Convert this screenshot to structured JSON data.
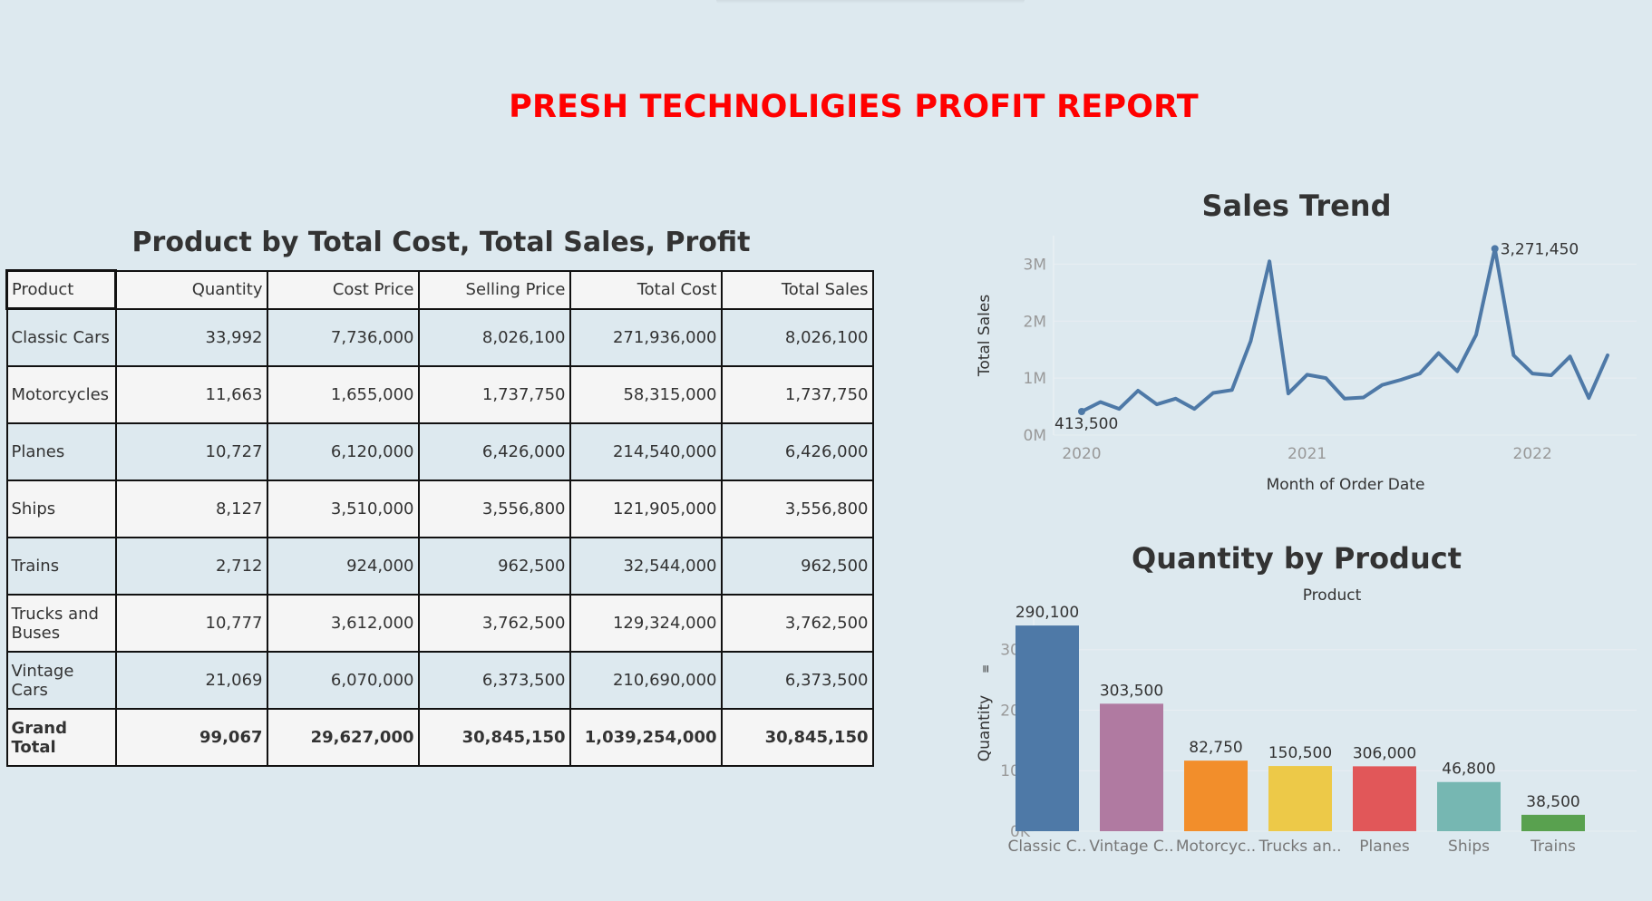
{
  "report_title": "PRESH TECHNOLIGIES PROFIT REPORT",
  "table": {
    "title": "Product by Total Cost, Total Sales, Profit",
    "headers": [
      "Product",
      "Quantity",
      "Cost Price",
      "Selling Price",
      "Total Cost",
      "Total Sales"
    ],
    "rows": [
      [
        "Classic Cars",
        "33,992",
        "7,736,000",
        "8,026,100",
        "271,936,000",
        "8,026,100"
      ],
      [
        "Motorcycles",
        "11,663",
        "1,655,000",
        "1,737,750",
        "58,315,000",
        "1,737,750"
      ],
      [
        "Planes",
        "10,727",
        "6,120,000",
        "6,426,000",
        "214,540,000",
        "6,426,000"
      ],
      [
        "Ships",
        "8,127",
        "3,510,000",
        "3,556,800",
        "121,905,000",
        "3,556,800"
      ],
      [
        "Trains",
        "2,712",
        "924,000",
        "962,500",
        "32,544,000",
        "962,500"
      ],
      [
        "Trucks and Buses",
        "10,777",
        "3,612,000",
        "3,762,500",
        "129,324,000",
        "3,762,500"
      ],
      [
        "Vintage Cars",
        "21,069",
        "6,070,000",
        "6,373,500",
        "210,690,000",
        "6,373,500"
      ]
    ],
    "total": [
      "Grand Total",
      "99,067",
      "29,627,000",
      "30,845,150",
      "1,039,254,000",
      "30,845,150"
    ]
  },
  "chart_data": [
    {
      "type": "line",
      "title": "Sales Trend",
      "xlabel": "Month of Order Date",
      "ylabel": "Total Sales",
      "x_ticks": [
        "2020",
        "2021",
        "2022"
      ],
      "y_ticks": [
        "0M",
        "1M",
        "2M",
        "3M"
      ],
      "ylim": [
        0,
        3500000
      ],
      "x": [
        "2020-01",
        "2020-02",
        "2020-03",
        "2020-04",
        "2020-05",
        "2020-06",
        "2020-07",
        "2020-08",
        "2020-09",
        "2020-10",
        "2020-11",
        "2020-12",
        "2021-01",
        "2021-02",
        "2021-03",
        "2021-04",
        "2021-05",
        "2021-06",
        "2021-07",
        "2021-08",
        "2021-09",
        "2021-10",
        "2021-11",
        "2021-12",
        "2022-01",
        "2022-02",
        "2022-03",
        "2022-04",
        "2022-05"
      ],
      "series": [
        {
          "values": [
            413500,
            580000,
            460000,
            780000,
            540000,
            640000,
            460000,
            740000,
            790000,
            1650000,
            3050000,
            730000,
            1060000,
            1000000,
            640000,
            660000,
            880000,
            970000,
            1080000,
            1440000,
            1120000,
            1760000,
            3271450,
            1400000,
            1080000,
            1050000,
            1380000,
            650000,
            1400000
          ],
          "color": "#4e79a7"
        }
      ],
      "annotations": [
        {
          "label": "413,500",
          "index": 0
        },
        {
          "label": "3,271,450",
          "index": 22
        }
      ]
    },
    {
      "type": "bar",
      "title": "Quantity by Product",
      "xlabel": "Product",
      "ylabel": "Quantity",
      "ylabel_sort_icon": "sort-icon",
      "y_ticks": [
        "0K",
        "10K",
        "20K",
        "30K"
      ],
      "ylim": [
        0,
        37000
      ],
      "categories": [
        "Classic C..",
        "Vintage C..",
        "Motorcyc..",
        "Trucks an..",
        "Planes",
        "Ships",
        "Trains"
      ],
      "values": [
        33992,
        21069,
        11663,
        10777,
        10727,
        8127,
        2712
      ],
      "data_labels": [
        "290,100",
        "303,500",
        "82,750",
        "150,500",
        "306,000",
        "46,800",
        "38,500"
      ],
      "colors": [
        "#4e79a7",
        "#b07aa1",
        "#f28e2b",
        "#edc948",
        "#e15759",
        "#76b7b2",
        "#59a14f"
      ]
    }
  ]
}
